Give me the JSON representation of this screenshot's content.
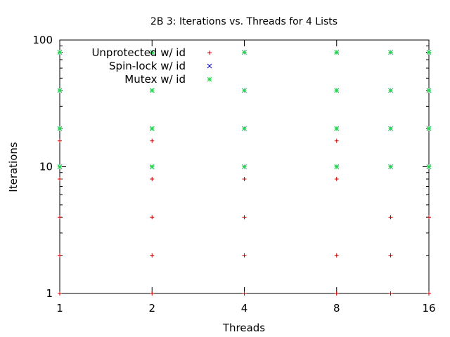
{
  "chart_data": {
    "type": "scatter",
    "title": "2B 3: Iterations vs. Threads for 4 Lists",
    "xlabel": "Threads",
    "ylabel": "Iterations",
    "xscale": "log2",
    "yscale": "log10",
    "xlim": [
      1,
      16
    ],
    "ylim": [
      1,
      100
    ],
    "xticks": [
      1,
      2,
      4,
      8,
      16
    ],
    "yticks": [
      1,
      10,
      100
    ],
    "grid": false,
    "legend_position": "top-left",
    "series": [
      {
        "name": "Unprotected w/ id",
        "marker": "plus",
        "color": "#cc0000",
        "points": [
          [
            1,
            1
          ],
          [
            1,
            2
          ],
          [
            1,
            4
          ],
          [
            1,
            8
          ],
          [
            1,
            16
          ],
          [
            2,
            1
          ],
          [
            2,
            2
          ],
          [
            2,
            4
          ],
          [
            2,
            8
          ],
          [
            2,
            16
          ],
          [
            4,
            1
          ],
          [
            4,
            2
          ],
          [
            4,
            4
          ],
          [
            4,
            8
          ],
          [
            8,
            1
          ],
          [
            8,
            2
          ],
          [
            8,
            8
          ],
          [
            8,
            16
          ],
          [
            12,
            1
          ],
          [
            12,
            2
          ],
          [
            12,
            4
          ],
          [
            16,
            1
          ],
          [
            16,
            4
          ]
        ]
      },
      {
        "name": "Spin-lock w/ id",
        "marker": "cross",
        "color": "#0000dd",
        "points": [
          [
            1,
            10
          ],
          [
            1,
            20
          ],
          [
            1,
            40
          ],
          [
            1,
            80
          ],
          [
            2,
            10
          ],
          [
            2,
            20
          ],
          [
            2,
            40
          ],
          [
            2,
            80
          ],
          [
            4,
            10
          ],
          [
            4,
            20
          ],
          [
            4,
            40
          ],
          [
            4,
            80
          ],
          [
            8,
            10
          ],
          [
            8,
            20
          ],
          [
            8,
            40
          ],
          [
            8,
            80
          ],
          [
            12,
            10
          ],
          [
            12,
            20
          ],
          [
            12,
            40
          ],
          [
            12,
            80
          ],
          [
            16,
            10
          ],
          [
            16,
            20
          ],
          [
            16,
            40
          ],
          [
            16,
            80
          ]
        ]
      },
      {
        "name": "Mutex w/ id",
        "marker": "star",
        "color": "#22dd44",
        "points": [
          [
            1,
            10
          ],
          [
            1,
            20
          ],
          [
            1,
            40
          ],
          [
            1,
            80
          ],
          [
            2,
            10
          ],
          [
            2,
            20
          ],
          [
            2,
            40
          ],
          [
            2,
            80
          ],
          [
            4,
            10
          ],
          [
            4,
            20
          ],
          [
            4,
            40
          ],
          [
            4,
            80
          ],
          [
            8,
            10
          ],
          [
            8,
            20
          ],
          [
            8,
            40
          ],
          [
            8,
            80
          ],
          [
            12,
            10
          ],
          [
            12,
            20
          ],
          [
            12,
            40
          ],
          [
            12,
            80
          ],
          [
            16,
            10
          ],
          [
            16,
            20
          ],
          [
            16,
            40
          ],
          [
            16,
            80
          ]
        ]
      }
    ]
  }
}
